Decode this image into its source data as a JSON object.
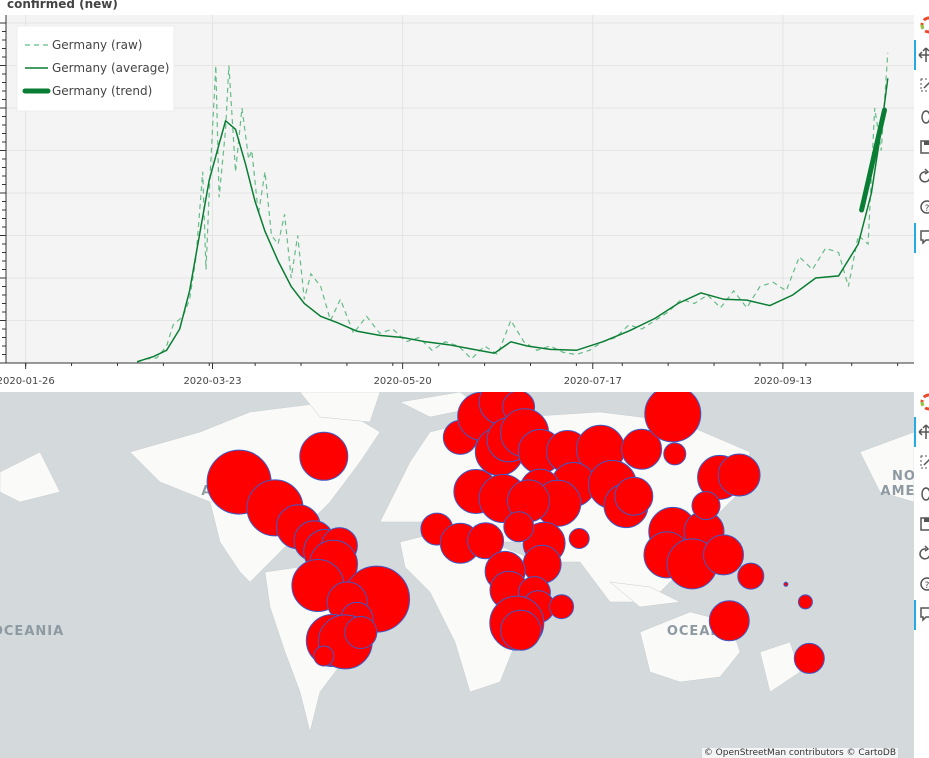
{
  "chart_data": [
    {
      "type": "line",
      "title": "confirmed (new)",
      "xlabel": "",
      "ylabel": "",
      "x_ticks": [
        "2020-01-26",
        "2020-03-23",
        "2020-05-20",
        "2020-07-17",
        "2020-09-13"
      ],
      "x_range": [
        "2020-01-20",
        "2020-10-23"
      ],
      "ylim": [
        0,
        8000
      ],
      "y_tick_labels_visible": false,
      "grid": true,
      "legend_position": "top-left",
      "series": [
        {
          "name": "Germany (raw)",
          "style": "dashed",
          "color": "#66bb88",
          "x": [
            "2020-02-29",
            "2020-03-03",
            "2020-03-06",
            "2020-03-09",
            "2020-03-11",
            "2020-03-14",
            "2020-03-16",
            "2020-03-18",
            "2020-03-20",
            "2020-03-21",
            "2020-03-22",
            "2020-03-24",
            "2020-03-25",
            "2020-03-27",
            "2020-03-28",
            "2020-03-30",
            "2020-04-01",
            "2020-04-03",
            "2020-04-04",
            "2020-04-06",
            "2020-04-08",
            "2020-04-10",
            "2020-04-12",
            "2020-04-14",
            "2020-04-16",
            "2020-04-18",
            "2020-04-20",
            "2020-04-22",
            "2020-04-25",
            "2020-04-28",
            "2020-05-01",
            "2020-05-05",
            "2020-05-09",
            "2020-05-13",
            "2020-05-17",
            "2020-05-21",
            "2020-05-25",
            "2020-05-29",
            "2020-06-02",
            "2020-06-06",
            "2020-06-10",
            "2020-06-14",
            "2020-06-18",
            "2020-06-22",
            "2020-06-26",
            "2020-06-30",
            "2020-07-04",
            "2020-07-08",
            "2020-07-12",
            "2020-07-16",
            "2020-07-20",
            "2020-07-24",
            "2020-07-28",
            "2020-08-01",
            "2020-08-05",
            "2020-08-09",
            "2020-08-13",
            "2020-08-17",
            "2020-08-21",
            "2020-08-25",
            "2020-08-29",
            "2020-09-02",
            "2020-09-06",
            "2020-09-10",
            "2020-09-14",
            "2020-09-18",
            "2020-09-22",
            "2020-09-26",
            "2020-09-30",
            "2020-10-03",
            "2020-10-06",
            "2020-10-09",
            "2020-10-11",
            "2020-10-13",
            "2020-10-15"
          ],
          "values": [
            20,
            100,
            120,
            400,
            900,
            1100,
            1500,
            2500,
            4500,
            2200,
            4000,
            7000,
            3900,
            5500,
            7000,
            4500,
            6000,
            4800,
            5000,
            3500,
            4500,
            3000,
            2800,
            3500,
            2000,
            3000,
            1500,
            2100,
            1800,
            1000,
            1500,
            700,
            1100,
            700,
            800,
            500,
            600,
            300,
            500,
            400,
            100,
            400,
            200,
            1000,
            500,
            300,
            400,
            250,
            200,
            300,
            500,
            600,
            900,
            800,
            1000,
            1200,
            1500,
            1400,
            1600,
            1300,
            1700,
            1300,
            1800,
            1900,
            1700,
            2500,
            2200,
            2700,
            2600,
            1800,
            3000,
            2800,
            6000,
            5000,
            7300
          ]
        },
        {
          "name": "Germany (average)",
          "style": "solid",
          "color": "#0a7d34",
          "x": [
            "2020-02-29",
            "2020-03-05",
            "2020-03-09",
            "2020-03-13",
            "2020-03-16",
            "2020-03-19",
            "2020-03-22",
            "2020-03-25",
            "2020-03-27",
            "2020-03-30",
            "2020-04-02",
            "2020-04-05",
            "2020-04-08",
            "2020-04-12",
            "2020-04-16",
            "2020-04-20",
            "2020-04-25",
            "2020-04-30",
            "2020-05-06",
            "2020-05-13",
            "2020-05-20",
            "2020-05-27",
            "2020-06-03",
            "2020-06-10",
            "2020-06-17",
            "2020-06-22",
            "2020-06-27",
            "2020-07-04",
            "2020-07-12",
            "2020-07-20",
            "2020-07-28",
            "2020-08-05",
            "2020-08-12",
            "2020-08-19",
            "2020-08-26",
            "2020-09-02",
            "2020-09-09",
            "2020-09-16",
            "2020-09-23",
            "2020-09-30",
            "2020-10-06",
            "2020-10-10",
            "2020-10-13",
            "2020-10-15"
          ],
          "values": [
            30,
            150,
            300,
            800,
            1700,
            3000,
            4300,
            5150,
            5700,
            5500,
            4700,
            3800,
            3100,
            2400,
            1800,
            1400,
            1100,
            950,
            750,
            650,
            600,
            500,
            430,
            330,
            230,
            500,
            400,
            320,
            300,
            500,
            750,
            1050,
            1400,
            1650,
            1500,
            1480,
            1350,
            1600,
            2000,
            2050,
            2800,
            4000,
            5500,
            6700
          ]
        },
        {
          "name": "Germany (trend)",
          "style": "solid-thick",
          "color": "#0a7d34",
          "x": [
            "2020-10-07",
            "2020-10-14"
          ],
          "values": [
            3600,
            5950
          ]
        }
      ]
    },
    {
      "type": "scatter",
      "title": "",
      "xlabel": "",
      "ylabel": "",
      "map_tiles": "CartoDB light",
      "attribution": "© OpenStreetMan contributors © CartoDB",
      "continent_labels": [
        "NORTH",
        "AMERICA",
        "ASIA",
        "OCEANIA",
        "OCEANIA",
        "NO",
        "AME"
      ],
      "bubble_fill": "#ff0000",
      "bubble_stroke": "#3d5ac7",
      "bubbles": [
        {
          "lon": -118.4,
          "lat": 34.0,
          "size": 32
        },
        {
          "lon": -75.0,
          "lat": 45.0,
          "size": 24
        },
        {
          "lon": -100.0,
          "lat": 23.0,
          "size": 28
        },
        {
          "lon": -88.0,
          "lat": 15.0,
          "size": 22
        },
        {
          "lon": -80.0,
          "lat": 9.0,
          "size": 20
        },
        {
          "lon": -74.0,
          "lat": 4.5,
          "size": 22
        },
        {
          "lon": -67.0,
          "lat": 7.0,
          "size": 18
        },
        {
          "lon": -70.0,
          "lat": -1.0,
          "size": 24
        },
        {
          "lon": -78.0,
          "lat": -10.0,
          "size": 26
        },
        {
          "lon": -47.9,
          "lat": -15.8,
          "size": 33
        },
        {
          "lon": -63.0,
          "lat": -17.0,
          "size": 20
        },
        {
          "lon": -58.0,
          "lat": -24.0,
          "size": 16
        },
        {
          "lon": -70.6,
          "lat": -33.4,
          "size": 26
        },
        {
          "lon": -64.0,
          "lat": -34.0,
          "size": 27
        },
        {
          "lon": -56.0,
          "lat": -30.0,
          "size": 16
        },
        {
          "lon": -75.0,
          "lat": -40.0,
          "size": 10
        },
        {
          "lon": -5.0,
          "lat": 53.0,
          "size": 17
        },
        {
          "lon": 6.0,
          "lat": 62.0,
          "size": 24
        },
        {
          "lon": 16.0,
          "lat": 68.0,
          "size": 22
        },
        {
          "lon": 24.9,
          "lat": 66.0,
          "size": 16
        },
        {
          "lon": 15.0,
          "lat": 47.0,
          "size": 24
        },
        {
          "lon": 20.0,
          "lat": 52.0,
          "size": 22
        },
        {
          "lon": 28.0,
          "lat": 55.0,
          "size": 24
        },
        {
          "lon": 36.0,
          "lat": 47.0,
          "size": 22
        },
        {
          "lon": 50.0,
          "lat": 47.0,
          "size": 21
        },
        {
          "lon": 66.9,
          "lat": 48.0,
          "size": 24
        },
        {
          "lon": 88.0,
          "lat": 48.0,
          "size": 20
        },
        {
          "lon": 104.0,
          "lat": 63.0,
          "size": 28
        },
        {
          "lon": 105.0,
          "lat": 46.0,
          "size": 11
        },
        {
          "lon": 53.0,
          "lat": 33.0,
          "size": 22
        },
        {
          "lon": 73.0,
          "lat": 33.0,
          "size": 24
        },
        {
          "lon": 80.0,
          "lat": 24.0,
          "size": 22
        },
        {
          "lon": 36.0,
          "lat": 31.0,
          "size": 20
        },
        {
          "lon": 45.0,
          "lat": 25.0,
          "size": 23
        },
        {
          "lon": 84.0,
          "lat": 28.0,
          "size": 19
        },
        {
          "lon": 104.0,
          "lat": 13.0,
          "size": 24
        },
        {
          "lon": 120.0,
          "lat": 13.0,
          "size": 20
        },
        {
          "lon": 128.0,
          "lat": 36.0,
          "size": 22
        },
        {
          "lon": 138.0,
          "lat": 37.0,
          "size": 21
        },
        {
          "lon": 121.0,
          "lat": 24.0,
          "size": 14
        },
        {
          "lon": 101.0,
          "lat": 3.0,
          "size": 23
        },
        {
          "lon": 113.9,
          "lat": -0.8,
          "size": 25
        },
        {
          "lon": 130.0,
          "lat": 3.0,
          "size": 20
        },
        {
          "lon": 144.0,
          "lat": -6.0,
          "size": 13
        },
        {
          "lon": 162.0,
          "lat": -9.5,
          "size": 2
        },
        {
          "lon": 133.0,
          "lat": -25.0,
          "size": 20
        },
        {
          "lon": 172.0,
          "lat": -17.0,
          "size": 7
        },
        {
          "lon": 174.0,
          "lat": -41.0,
          "size": 15
        },
        {
          "lon": -17.0,
          "lat": 14.0,
          "size": 16
        },
        {
          "lon": -5.0,
          "lat": 8.0,
          "size": 20
        },
        {
          "lon": 8.0,
          "lat": 9.0,
          "size": 18
        },
        {
          "lon": 3.0,
          "lat": 30.0,
          "size": 22
        },
        {
          "lon": 17.0,
          "lat": 27.0,
          "size": 24
        },
        {
          "lon": 30.0,
          "lat": 26.0,
          "size": 21
        },
        {
          "lon": 38.0,
          "lat": 8.0,
          "size": 21
        },
        {
          "lon": 37.0,
          "lat": -1.0,
          "size": 19
        },
        {
          "lon": 25.0,
          "lat": 15.0,
          "size": 15
        },
        {
          "lon": 18.0,
          "lat": -4.0,
          "size": 20
        },
        {
          "lon": 20.0,
          "lat": -12.0,
          "size": 19
        },
        {
          "lon": 33.0,
          "lat": -13.0,
          "size": 16
        },
        {
          "lon": 35.0,
          "lat": -19.0,
          "size": 16
        },
        {
          "lon": 47.0,
          "lat": -19.0,
          "size": 12
        },
        {
          "lon": 24.0,
          "lat": -26.0,
          "size": 27
        },
        {
          "lon": 26.0,
          "lat": -29.0,
          "size": 20
        },
        {
          "lon": 56.0,
          "lat": 10.0,
          "size": 10
        }
      ]
    }
  ]
}
